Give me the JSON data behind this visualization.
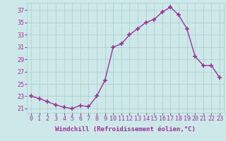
{
  "x": [
    0,
    1,
    2,
    3,
    4,
    5,
    6,
    7,
    8,
    9,
    10,
    11,
    12,
    13,
    14,
    15,
    16,
    17,
    18,
    19,
    20,
    21,
    22,
    23
  ],
  "y": [
    23,
    22.6,
    22.1,
    21.6,
    21.2,
    21.0,
    21.5,
    21.3,
    23.0,
    25.6,
    31.0,
    31.5,
    33.0,
    34.0,
    35.0,
    35.5,
    36.7,
    37.5,
    36.2,
    34.0,
    29.5,
    28.0,
    28.0,
    26.0
  ],
  "line_color": "#993399",
  "marker": "+",
  "marker_size": 4,
  "marker_lw": 1.2,
  "line_width": 1.0,
  "linestyle": "-",
  "bg_color": "#cce8e8",
  "grid_color": "#aacccc",
  "xlabel": "Windchill (Refroidissement éolien,°C)",
  "xlabel_fontsize": 6.5,
  "ylabel_ticks": [
    21,
    23,
    25,
    27,
    29,
    31,
    33,
    35,
    37
  ],
  "xtick_labels": [
    "0",
    "1",
    "2",
    "3",
    "4",
    "5",
    "6",
    "7",
    "8",
    "9",
    "10",
    "11",
    "12",
    "13",
    "14",
    "15",
    "16",
    "17",
    "18",
    "19",
    "20",
    "21",
    "22",
    "23"
  ],
  "ylim": [
    20.3,
    38.2
  ],
  "xlim": [
    -0.5,
    23.5
  ],
  "tick_fontsize": 6.0,
  "tick_color": "#993399",
  "label_color": "#993399"
}
